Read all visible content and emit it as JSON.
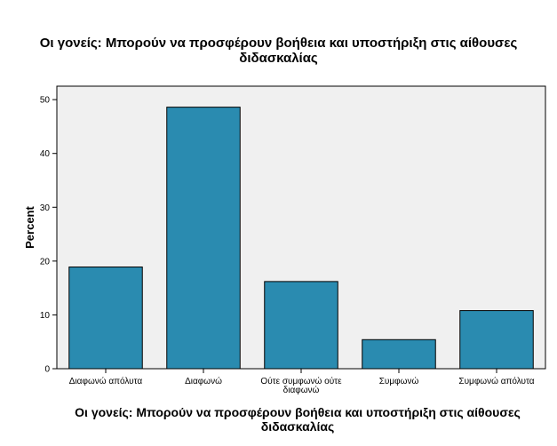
{
  "chart_data": {
    "type": "bar",
    "title_lines": [
      "Οι γονείς: Μπορούν να προσφέρουν βοήθεια και υποστήριξη στις αίθουσες",
      "διδασκαλίας"
    ],
    "xlabel_lines": [
      "Οι γονείς: Μπορούν να προσφέρουν βοήθεια και υποστήριξη στις αίθουσες",
      "διδασκαλίας"
    ],
    "ylabel": "Percent",
    "categories": [
      [
        "Διαφωνώ απόλυτα"
      ],
      [
        "Διαφωνώ"
      ],
      [
        "Ούτε συμφωνώ ούτε",
        "διαφωνώ"
      ],
      [
        "Συμφωνώ"
      ],
      [
        "Συμφωνώ απόλυτα"
      ]
    ],
    "values": [
      18.9,
      48.6,
      16.2,
      5.4,
      10.8
    ],
    "ylim": [
      0,
      52.5
    ],
    "yticks": [
      0,
      10,
      20,
      30,
      40,
      50
    ],
    "grid": false,
    "colors": {
      "bar_fill": "#2a8bb0",
      "bar_stroke": "#000000",
      "plot_bg": "#f0f0f0"
    }
  }
}
